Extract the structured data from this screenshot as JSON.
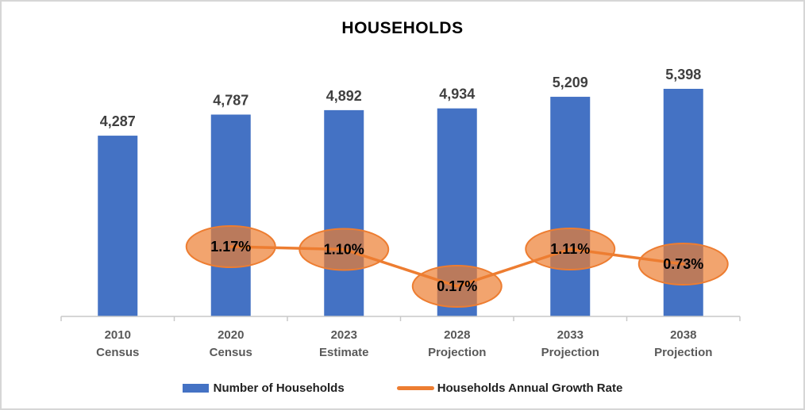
{
  "chart_data": {
    "type": "combo-bar-line",
    "title": "HOUSEHOLDS",
    "categories": [
      [
        "2010",
        "Census"
      ],
      [
        "2020",
        "Census"
      ],
      [
        "2023",
        "Estimate"
      ],
      [
        "2028",
        "Projection"
      ],
      [
        "2033",
        "Projection"
      ],
      [
        "2038",
        "Projection"
      ]
    ],
    "bar_series": {
      "name": "Number of Households",
      "color": "#4472C4",
      "values": [
        4287,
        4787,
        4892,
        4934,
        5209,
        5398
      ],
      "labels": [
        "4,287",
        "4,787",
        "4,892",
        "4,934",
        "5,209",
        "5,398"
      ],
      "label_color": "#404040"
    },
    "line_series": {
      "name": "Households Annual Growth Rate",
      "color": "#ED7D31",
      "values": [
        null,
        1.17,
        1.1,
        0.17,
        1.11,
        0.73
      ],
      "labels": [
        null,
        "1.17%",
        "1.10%",
        "0.17%",
        "1.11%",
        "0.73%"
      ],
      "marker": "ellipse-callout",
      "marker_fill_opacity": 0.7,
      "label_color": "#000000"
    },
    "axis": {
      "x_label_color": "#595959",
      "axis_line_color": "#C9C9C9",
      "gridlines": false,
      "value_axes_visible": false
    },
    "legend_position": "bottom"
  }
}
